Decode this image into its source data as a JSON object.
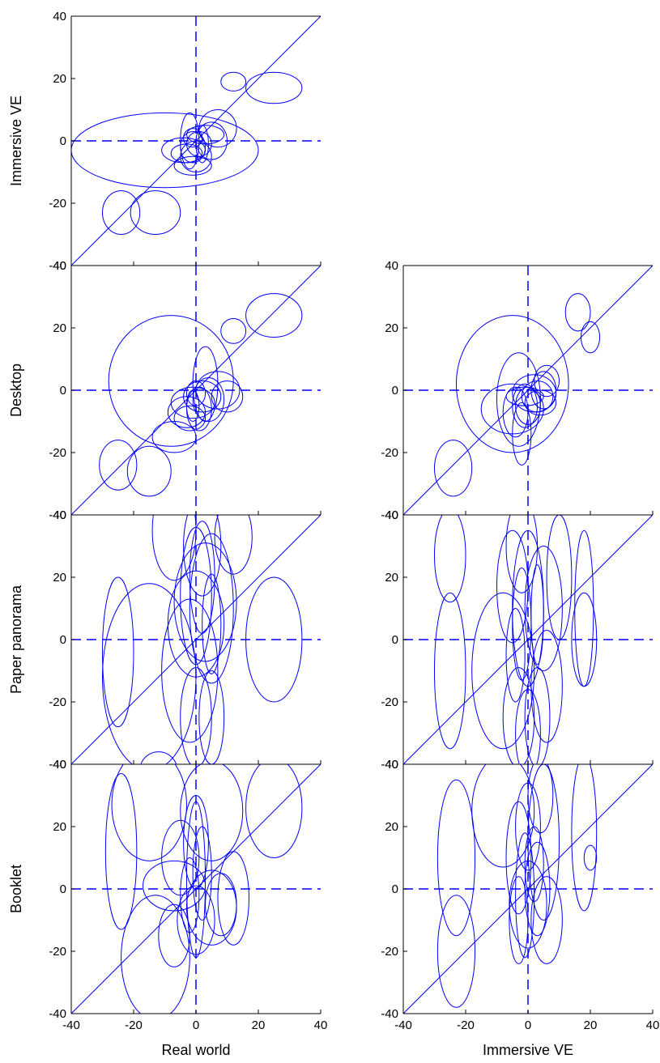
{
  "chart_data": {
    "type": "scatter",
    "mark": "error-ellipse",
    "description_of_marks": "each ellipse: center (cx, cy) and radii (rx, ry) in data units",
    "color": "#0000ff",
    "xlim": [
      -40,
      40
    ],
    "ylim": [
      -40,
      40
    ],
    "ticks": [
      -40,
      -20,
      0,
      20,
      40
    ],
    "grid": false,
    "reference_lines": [
      "y = x diagonal",
      "dashed x = 0",
      "dashed y = 0"
    ],
    "columns": [
      {
        "xlabel": "Real world"
      },
      {
        "xlabel": "Immersive VE"
      }
    ],
    "rows": [
      {
        "ylabel": "Immersive VE"
      },
      {
        "ylabel": "Desktop"
      },
      {
        "ylabel": "Paper panorama"
      },
      {
        "ylabel": "Booklet"
      }
    ],
    "panels": [
      {
        "row": 0,
        "col": 0,
        "x_label": "Real world",
        "y_label": "Immersive VE",
        "ellipses": [
          {
            "cx": -10,
            "cy": -3,
            "rx": 30,
            "ry": 12
          },
          {
            "cx": 25,
            "cy": 17,
            "rx": 9,
            "ry": 5
          },
          {
            "cx": 12,
            "cy": 19,
            "rx": 4,
            "ry": 3
          },
          {
            "cx": -24,
            "cy": -23,
            "rx": 6,
            "ry": 7
          },
          {
            "cx": -13,
            "cy": -23,
            "rx": 8,
            "ry": 7
          },
          {
            "cx": 7,
            "cy": 4,
            "rx": 6,
            "ry": 6
          },
          {
            "cx": 5,
            "cy": 0,
            "rx": 5,
            "ry": 6
          },
          {
            "cx": -2,
            "cy": 0,
            "rx": 3,
            "ry": 9
          },
          {
            "cx": -1,
            "cy": -2,
            "rx": 4,
            "ry": 5
          },
          {
            "cx": 1,
            "cy": -1,
            "rx": 4,
            "ry": 4
          },
          {
            "cx": -4,
            "cy": -3,
            "rx": 7,
            "ry": 4
          },
          {
            "cx": 0,
            "cy": -5,
            "rx": 5,
            "ry": 5
          },
          {
            "cx": -1,
            "cy": 1,
            "rx": 3,
            "ry": 3
          },
          {
            "cx": 3,
            "cy": 2,
            "rx": 6,
            "ry": 3
          },
          {
            "cx": -3,
            "cy": -4,
            "rx": 5,
            "ry": 3
          },
          {
            "cx": -1,
            "cy": -8,
            "rx": 6,
            "ry": 3
          },
          {
            "cx": 2,
            "cy": -1,
            "rx": 2,
            "ry": 6
          }
        ]
      },
      {
        "row": 1,
        "col": 0,
        "x_label": "Real world",
        "y_label": "Desktop",
        "ellipses": [
          {
            "cx": -8,
            "cy": 3,
            "rx": 20,
            "ry": 21
          },
          {
            "cx": 25,
            "cy": 24,
            "rx": 9,
            "ry": 7
          },
          {
            "cx": 12,
            "cy": 19,
            "rx": 4,
            "ry": 4
          },
          {
            "cx": -25,
            "cy": -24,
            "rx": 6,
            "ry": 8
          },
          {
            "cx": -15,
            "cy": -26,
            "rx": 7,
            "ry": 8
          },
          {
            "cx": -7,
            "cy": -15,
            "rx": 7,
            "ry": 5
          },
          {
            "cx": 3,
            "cy": 2,
            "rx": 4,
            "ry": 12
          },
          {
            "cx": 7,
            "cy": 0,
            "rx": 7,
            "ry": 6
          },
          {
            "cx": 2,
            "cy": -2,
            "rx": 6,
            "ry": 5
          },
          {
            "cx": -1,
            "cy": -4,
            "rx": 7,
            "ry": 5
          },
          {
            "cx": -3,
            "cy": -7,
            "rx": 6,
            "ry": 5
          },
          {
            "cx": 0,
            "cy": -1,
            "rx": 3,
            "ry": 4
          },
          {
            "cx": -2,
            "cy": -9,
            "rx": 5,
            "ry": 4
          },
          {
            "cx": 4,
            "cy": -3,
            "rx": 5,
            "ry": 7
          },
          {
            "cx": -1,
            "cy": -5,
            "rx": 2,
            "ry": 5
          },
          {
            "cx": 10,
            "cy": -2,
            "rx": 5,
            "ry": 5
          },
          {
            "cx": 1,
            "cy": -6,
            "rx": 4,
            "ry": 7
          }
        ]
      },
      {
        "row": 2,
        "col": 0,
        "x_label": "Real world",
        "y_label": "Paper panorama",
        "ellipses": [
          {
            "cx": -25,
            "cy": -4,
            "rx": 5,
            "ry": 24
          },
          {
            "cx": -15,
            "cy": -12,
            "rx": 15,
            "ry": 30
          },
          {
            "cx": -7,
            "cy": 35,
            "rx": 7,
            "ry": 16
          },
          {
            "cx": 0,
            "cy": 14,
            "rx": 5,
            "ry": 22
          },
          {
            "cx": 5,
            "cy": 10,
            "rx": 7,
            "ry": 24
          },
          {
            "cx": 12,
            "cy": 33,
            "rx": 6,
            "ry": 12
          },
          {
            "cx": 25,
            "cy": 0,
            "rx": 9,
            "ry": 20
          },
          {
            "cx": 3,
            "cy": 12,
            "rx": 10,
            "ry": 19
          },
          {
            "cx": 0,
            "cy": 5,
            "rx": 9,
            "ry": 17
          },
          {
            "cx": 2,
            "cy": 20,
            "rx": 4,
            "ry": 18
          },
          {
            "cx": 5,
            "cy": 5,
            "rx": 3,
            "ry": 16
          },
          {
            "cx": 0,
            "cy": -25,
            "rx": 5,
            "ry": 16
          },
          {
            "cx": 5,
            "cy": -25,
            "rx": 4,
            "ry": 15
          },
          {
            "cx": -12,
            "cy": -42,
            "rx": 6,
            "ry": 6
          },
          {
            "cx": -2,
            "cy": -10,
            "rx": 9,
            "ry": 23
          },
          {
            "cx": 2,
            "cy": 30,
            "rx": 6,
            "ry": 16
          }
        ]
      },
      {
        "row": 3,
        "col": 0,
        "x_label": "Real world",
        "y_label": "Booklet",
        "ellipses": [
          {
            "cx": -24,
            "cy": 12,
            "rx": 5,
            "ry": 25
          },
          {
            "cx": -15,
            "cy": 27,
            "rx": 12,
            "ry": 18
          },
          {
            "cx": -13,
            "cy": -22,
            "rx": 11,
            "ry": 20
          },
          {
            "cx": 25,
            "cy": 26,
            "rx": 9,
            "ry": 16
          },
          {
            "cx": -5,
            "cy": 10,
            "rx": 6,
            "ry": 12
          },
          {
            "cx": 0,
            "cy": 15,
            "rx": 4,
            "ry": 15
          },
          {
            "cx": 0,
            "cy": 3,
            "rx": 3,
            "ry": 25
          },
          {
            "cx": 5,
            "cy": 25,
            "rx": 10,
            "ry": 16
          },
          {
            "cx": -7,
            "cy": 1,
            "rx": 10,
            "ry": 8
          },
          {
            "cx": -7,
            "cy": -15,
            "rx": 5,
            "ry": 10
          },
          {
            "cx": 5,
            "cy": -6,
            "rx": 8,
            "ry": 12
          },
          {
            "cx": 12,
            "cy": -3,
            "rx": 5,
            "ry": 15
          },
          {
            "cx": 0,
            "cy": -10,
            "rx": 6,
            "ry": 11
          },
          {
            "cx": 8,
            "cy": -5,
            "rx": 5,
            "ry": 10
          },
          {
            "cx": -2,
            "cy": -2,
            "rx": 3,
            "ry": 12
          },
          {
            "cx": 2,
            "cy": 5,
            "rx": 3,
            "ry": 15
          }
        ]
      },
      {
        "row": 1,
        "col": 1,
        "x_label": "Immersive VE",
        "y_label": "Desktop",
        "ellipses": [
          {
            "cx": -5,
            "cy": 2,
            "rx": 18,
            "ry": 22
          },
          {
            "cx": 16,
            "cy": 25,
            "rx": 4,
            "ry": 6
          },
          {
            "cx": 20,
            "cy": 17,
            "rx": 3,
            "ry": 5
          },
          {
            "cx": -24,
            "cy": -25,
            "rx": 6,
            "ry": 9
          },
          {
            "cx": -5,
            "cy": -6,
            "rx": 10,
            "ry": 8
          },
          {
            "cx": -3,
            "cy": -3,
            "rx": 7,
            "ry": 15
          },
          {
            "cx": 0,
            "cy": -5,
            "rx": 4,
            "ry": 6
          },
          {
            "cx": 2,
            "cy": -1,
            "rx": 7,
            "ry": 6
          },
          {
            "cx": -1,
            "cy": -5,
            "rx": 4,
            "ry": 7
          },
          {
            "cx": 3,
            "cy": -2,
            "rx": 5,
            "ry": 5
          },
          {
            "cx": 5,
            "cy": 0,
            "rx": 4,
            "ry": 6
          },
          {
            "cx": -4,
            "cy": -7,
            "rx": 4,
            "ry": 8
          },
          {
            "cx": -2,
            "cy": -14,
            "rx": 3,
            "ry": 10
          },
          {
            "cx": 4,
            "cy": -4,
            "rx": 5,
            "ry": 4
          },
          {
            "cx": 6,
            "cy": 3,
            "rx": 4,
            "ry": 5
          },
          {
            "cx": -1,
            "cy": -2,
            "rx": 6,
            "ry": 3
          }
        ]
      },
      {
        "row": 2,
        "col": 1,
        "x_label": "Immersive VE",
        "y_label": "Paper panorama",
        "ellipses": [
          {
            "cx": -25,
            "cy": 27,
            "rx": 5,
            "ry": 15
          },
          {
            "cx": -25,
            "cy": -10,
            "rx": 5,
            "ry": 25
          },
          {
            "cx": -8,
            "cy": -10,
            "rx": 10,
            "ry": 25
          },
          {
            "cx": -5,
            "cy": 17,
            "rx": 5,
            "ry": 18
          },
          {
            "cx": 0,
            "cy": 10,
            "rx": 5,
            "ry": 25
          },
          {
            "cx": 5,
            "cy": 10,
            "rx": 6,
            "ry": 20
          },
          {
            "cx": -2,
            "cy": 30,
            "rx": 5,
            "ry": 15
          },
          {
            "cx": 10,
            "cy": 20,
            "rx": 4,
            "ry": 20
          },
          {
            "cx": 18,
            "cy": 10,
            "rx": 3,
            "ry": 25
          },
          {
            "cx": 18,
            "cy": 0,
            "rx": 4,
            "ry": 15
          },
          {
            "cx": -3,
            "cy": -25,
            "rx": 5,
            "ry": 16
          },
          {
            "cx": 3,
            "cy": -25,
            "rx": 4,
            "ry": 16
          },
          {
            "cx": 6,
            "cy": -15,
            "rx": 5,
            "ry": 18
          },
          {
            "cx": 0,
            "cy": -30,
            "rx": 4,
            "ry": 14
          },
          {
            "cx": -2,
            "cy": 5,
            "rx": 3,
            "ry": 18
          },
          {
            "cx": 3,
            "cy": 8,
            "rx": 2,
            "ry": 16
          },
          {
            "cx": -4,
            "cy": -5,
            "rx": 3,
            "ry": 15
          }
        ]
      },
      {
        "row": 3,
        "col": 1,
        "x_label": "Immersive VE",
        "y_label": "Booklet",
        "ellipses": [
          {
            "cx": -23,
            "cy": 10,
            "rx": 6,
            "ry": 25
          },
          {
            "cx": -23,
            "cy": -20,
            "rx": 6,
            "ry": 18
          },
          {
            "cx": -8,
            "cy": 25,
            "rx": 10,
            "ry": 18
          },
          {
            "cx": 0,
            "cy": 20,
            "rx": 4,
            "ry": 14
          },
          {
            "cx": -3,
            "cy": 10,
            "rx": 4,
            "ry": 18
          },
          {
            "cx": 3,
            "cy": 0,
            "rx": 4,
            "ry": 15
          },
          {
            "cx": 5,
            "cy": 15,
            "rx": 5,
            "ry": 25
          },
          {
            "cx": 0,
            "cy": -5,
            "rx": 6,
            "ry": 14
          },
          {
            "cx": 18,
            "cy": 18,
            "rx": 4,
            "ry": 25
          },
          {
            "cx": 20,
            "cy": 10,
            "rx": 2,
            "ry": 4
          },
          {
            "cx": -3,
            "cy": -10,
            "rx": 3,
            "ry": 14
          },
          {
            "cx": 6,
            "cy": -10,
            "rx": 5,
            "ry": 14
          },
          {
            "cx": 2,
            "cy": 8,
            "rx": 3,
            "ry": 12
          },
          {
            "cx": -1,
            "cy": -2,
            "rx": 3,
            "ry": 20
          },
          {
            "cx": 4,
            "cy": 30,
            "rx": 4,
            "ry": 12
          }
        ]
      }
    ]
  }
}
